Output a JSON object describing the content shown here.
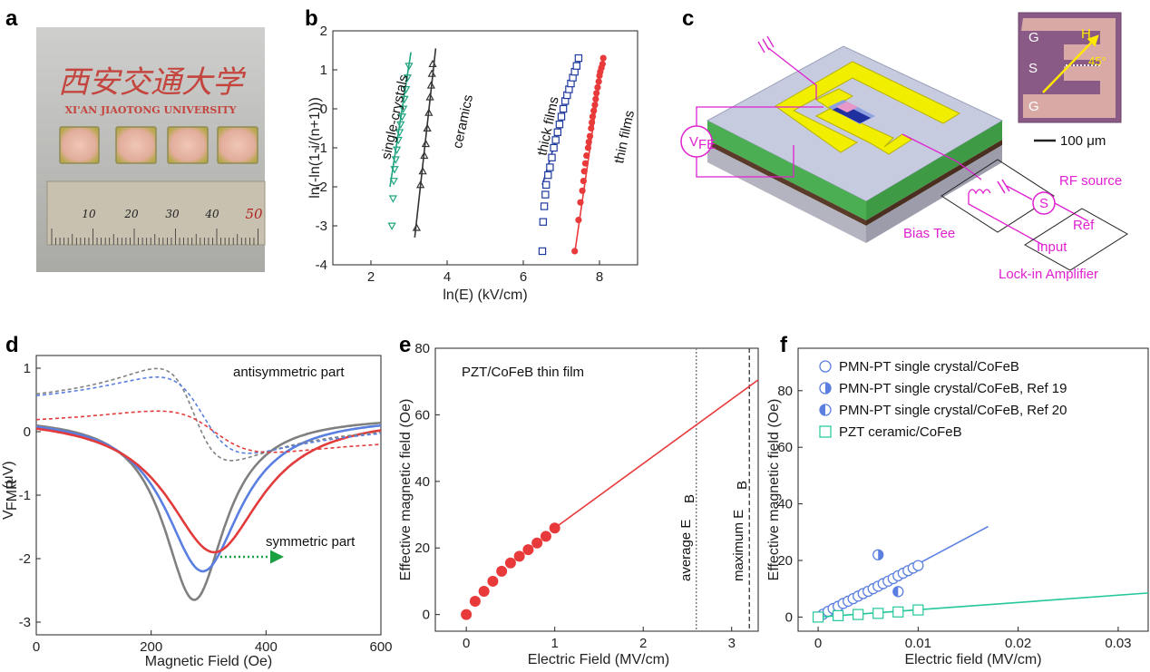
{
  "panel_labels": [
    "a",
    "b",
    "c",
    "d",
    "e",
    "f"
  ],
  "photo": {
    "logo_text": "西安交通大学",
    "university": "XI'AN JIAOTONG UNIVERSITY",
    "ruler_marks": [
      "10",
      "20",
      "30",
      "40",
      "50"
    ],
    "colors": {
      "background": "#b9b9b7",
      "sample": "#e6b9a8",
      "ruler": "#c7bfae"
    }
  },
  "schematic": {
    "labels": {
      "vfe": "V",
      "vfe_sub": "FE",
      "rf_source": "RF source",
      "ref": "Ref",
      "input": "Input",
      "bias_tee": "Bias Tee",
      "lockin": "Lock-in Amplifier",
      "s_symbol": "S"
    },
    "inset": {
      "g_top": "G",
      "s": "S",
      "g_bottom": "G",
      "field": "H",
      "angle": "45°",
      "scale": "100 μm"
    },
    "colors": {
      "wires": "#e020d0",
      "electrode": "#f2ee00",
      "substrate": "#b9bfdc",
      "layer": "#4cae52",
      "bottom": "#5a3b2a",
      "inset_bg": "#8a5a86"
    }
  },
  "chart_data": [
    {
      "id": "b",
      "type": "scatter",
      "xlabel": "ln(E) (kV/cm)",
      "ylabel": "ln(-ln(1-i/(n+1)))",
      "xlim": [
        1,
        9
      ],
      "ylim": [
        -4,
        2
      ],
      "xticks": [
        2,
        4,
        6,
        8
      ],
      "yticks": [
        -4,
        -3,
        -2,
        -1,
        0,
        1,
        2
      ],
      "series": [
        {
          "name": "single-crystals",
          "marker": "triangle-down",
          "color": "#1fa37f",
          "x": [
            2.55,
            2.58,
            2.6,
            2.62,
            2.65,
            2.68,
            2.72,
            2.75,
            2.78,
            2.82,
            2.85,
            2.88,
            2.92,
            2.96,
            3.0
          ],
          "y": [
            -3.0,
            -2.3,
            -1.85,
            -1.55,
            -1.3,
            -1.05,
            -0.8,
            -0.6,
            -0.4,
            -0.2,
            0.0,
            0.25,
            0.5,
            0.8,
            1.1
          ],
          "fit": [
            [
              2.5,
              -2.0
            ],
            [
              3.05,
              1.45
            ]
          ]
        },
        {
          "name": "ceramics",
          "marker": "triangle-up",
          "color": "#333333",
          "x": [
            3.2,
            3.3,
            3.36,
            3.4,
            3.44,
            3.48,
            3.52,
            3.55,
            3.58,
            3.6,
            3.62
          ],
          "y": [
            -3.05,
            -1.95,
            -1.6,
            -1.2,
            -0.9,
            -0.5,
            -0.1,
            0.3,
            0.6,
            0.9,
            1.15
          ],
          "fit": [
            [
              3.15,
              -3.3
            ],
            [
              3.7,
              1.55
            ]
          ]
        },
        {
          "name": "thick films",
          "marker": "square",
          "color": "#1f3a9e",
          "x": [
            6.5,
            6.52,
            6.55,
            6.58,
            6.6,
            6.65,
            6.7,
            6.75,
            6.8,
            6.85,
            6.9,
            6.95,
            7.0,
            7.05,
            7.1,
            7.15,
            7.2,
            7.25,
            7.3,
            7.35,
            7.4,
            7.45
          ],
          "y": [
            -3.65,
            -2.9,
            -2.5,
            -2.2,
            -1.95,
            -1.7,
            -1.5,
            -1.25,
            -1.0,
            -0.8,
            -0.6,
            -0.4,
            -0.2,
            0.0,
            0.2,
            0.35,
            0.5,
            0.65,
            0.8,
            0.95,
            1.1,
            1.3
          ],
          "fit": [
            [
              6.5,
              -1.95
            ],
            [
              7.5,
              1.3
            ]
          ]
        },
        {
          "name": "thin films",
          "marker": "circle",
          "color": "#e83a3a",
          "x": [
            7.35,
            7.45,
            7.5,
            7.55,
            7.58,
            7.6,
            7.63,
            7.66,
            7.7,
            7.72,
            7.75,
            7.78,
            7.8,
            7.82,
            7.85,
            7.88,
            7.9,
            7.92,
            7.95,
            7.98,
            8.0,
            8.02,
            8.05,
            8.08,
            8.1
          ],
          "y": [
            -3.65,
            -2.85,
            -2.4,
            -2.1,
            -1.85,
            -1.6,
            -1.4,
            -1.2,
            -1.0,
            -0.85,
            -0.7,
            -0.5,
            -0.35,
            -0.2,
            -0.05,
            0.1,
            0.25,
            0.4,
            0.55,
            0.7,
            0.85,
            0.95,
            1.05,
            1.15,
            1.3
          ],
          "fit": [
            [
              7.35,
              -3.7
            ],
            [
              8.1,
              1.35
            ]
          ]
        }
      ]
    },
    {
      "id": "d",
      "type": "line",
      "xlabel": "Magnetic Field (Oe)",
      "ylabel": "V",
      "ylabel_sub": "FMR",
      "ylabel_unit": " (μV)",
      "xlim": [
        0,
        600
      ],
      "ylim": [
        -3.2,
        1.2
      ],
      "xticks": [
        0,
        200,
        400,
        600
      ],
      "yticks": [
        -3,
        -2,
        -1,
        0,
        1
      ],
      "annotations": [
        "antisymmetric part",
        "symmetric part"
      ],
      "series": [
        {
          "color": "#808080",
          "style": "solid",
          "kind": "sym",
          "amp": -2.9,
          "center": 275,
          "width": 65,
          "offset": 0.25
        },
        {
          "color": "#5a7fe0",
          "style": "solid",
          "kind": "sym",
          "amp": -2.45,
          "center": 290,
          "width": 80,
          "offset": 0.25
        },
        {
          "color": "#e23b3b",
          "style": "solid",
          "kind": "sym",
          "amp": -2.15,
          "center": 310,
          "width": 100,
          "offset": 0.25
        },
        {
          "color": "#808080",
          "style": "dashed",
          "kind": "anti",
          "amp": 1.45,
          "center": 275,
          "width": 65,
          "offset": 0.27
        },
        {
          "color": "#5a7fe0",
          "style": "dashed",
          "kind": "anti",
          "amp": 1.2,
          "center": 290,
          "width": 80,
          "offset": 0.26
        },
        {
          "color": "#e23b3b",
          "style": "dashed",
          "kind": "anti",
          "amp": 0.65,
          "center": 310,
          "width": 100,
          "offset": 0.0
        }
      ]
    },
    {
      "id": "e",
      "type": "scatter",
      "title": "PZT/CoFeB thin film",
      "xlabel": "Electric Field (MV/cm)",
      "ylabel": "Effective magnetic field (Oe)",
      "xlim": [
        -0.35,
        3.3
      ],
      "ylim": [
        -5,
        80
      ],
      "xticks": [
        0,
        1,
        2,
        3
      ],
      "yticks": [
        0,
        20,
        40,
        60,
        80
      ],
      "points_x": [
        0.0,
        0.1,
        0.2,
        0.3,
        0.4,
        0.5,
        0.6,
        0.7,
        0.8,
        0.9,
        1.0
      ],
      "points_y": [
        0.0,
        4.0,
        7.0,
        10.0,
        13.0,
        15.5,
        17.5,
        19.5,
        21.5,
        23.5,
        26.0
      ],
      "fit": [
        [
          1.0,
          26.0
        ],
        [
          3.3,
          70.5
        ]
      ],
      "color": "#e83a3a",
      "vlines": [
        {
          "x": 2.6,
          "label": "average E",
          "label_sub": "B"
        },
        {
          "x": 3.2,
          "label": "maximum E",
          "label_sub": "B"
        }
      ]
    },
    {
      "id": "f",
      "type": "scatter",
      "xlabel": "Electric field (MV/cm)",
      "ylabel": "Effective magnetic field (Oe)",
      "xlim": [
        -0.002,
        0.033
      ],
      "ylim": [
        -5,
        95
      ],
      "xticks": [
        0,
        0.01,
        0.02,
        0.03
      ],
      "xtick_labels": [
        "0",
        "0.01",
        "0.02",
        "0.03"
      ],
      "yticks": [
        0,
        20,
        40,
        60,
        80
      ],
      "series": [
        {
          "name": "PMN-PT single crystal/CoFeB",
          "marker": "circle-open",
          "color": "#5a7fe0",
          "x": [
            0.0,
            0.0005,
            0.001,
            0.0015,
            0.002,
            0.0025,
            0.003,
            0.0035,
            0.004,
            0.0045,
            0.005,
            0.0055,
            0.006,
            0.0065,
            0.007,
            0.0075,
            0.008,
            0.0085,
            0.009,
            0.0095,
            0.01
          ],
          "y": [
            0.0,
            1.0,
            2.0,
            3.0,
            3.8,
            4.8,
            5.6,
            6.5,
            7.4,
            8.3,
            9.1,
            10.0,
            10.9,
            11.8,
            12.7,
            13.6,
            14.6,
            15.5,
            16.4,
            17.3,
            18.2
          ],
          "fit": [
            [
              0.0,
              0.0
            ],
            [
              0.017,
              32.0
            ]
          ]
        },
        {
          "name": "PMN-PT single crystal/CoFeB, Ref 19",
          "marker": "circle-half-right",
          "color": "#5a7fe0",
          "x": [
            0.006
          ],
          "y": [
            22.0
          ]
        },
        {
          "name": "PMN-PT single crystal/CoFeB, Ref 20",
          "marker": "circle-half-left",
          "color": "#5a7fe0",
          "x": [
            0.008
          ],
          "y": [
            9.0
          ]
        },
        {
          "name": "PZT ceramic/CoFeB",
          "marker": "square-open",
          "color": "#22c79a",
          "x": [
            0.0,
            0.002,
            0.004,
            0.006,
            0.008,
            0.01
          ],
          "y": [
            0.0,
            0.5,
            0.9,
            1.3,
            1.8,
            2.5
          ],
          "fit": [
            [
              0.0,
              0.0
            ],
            [
              0.033,
              8.5
            ]
          ]
        }
      ]
    }
  ]
}
